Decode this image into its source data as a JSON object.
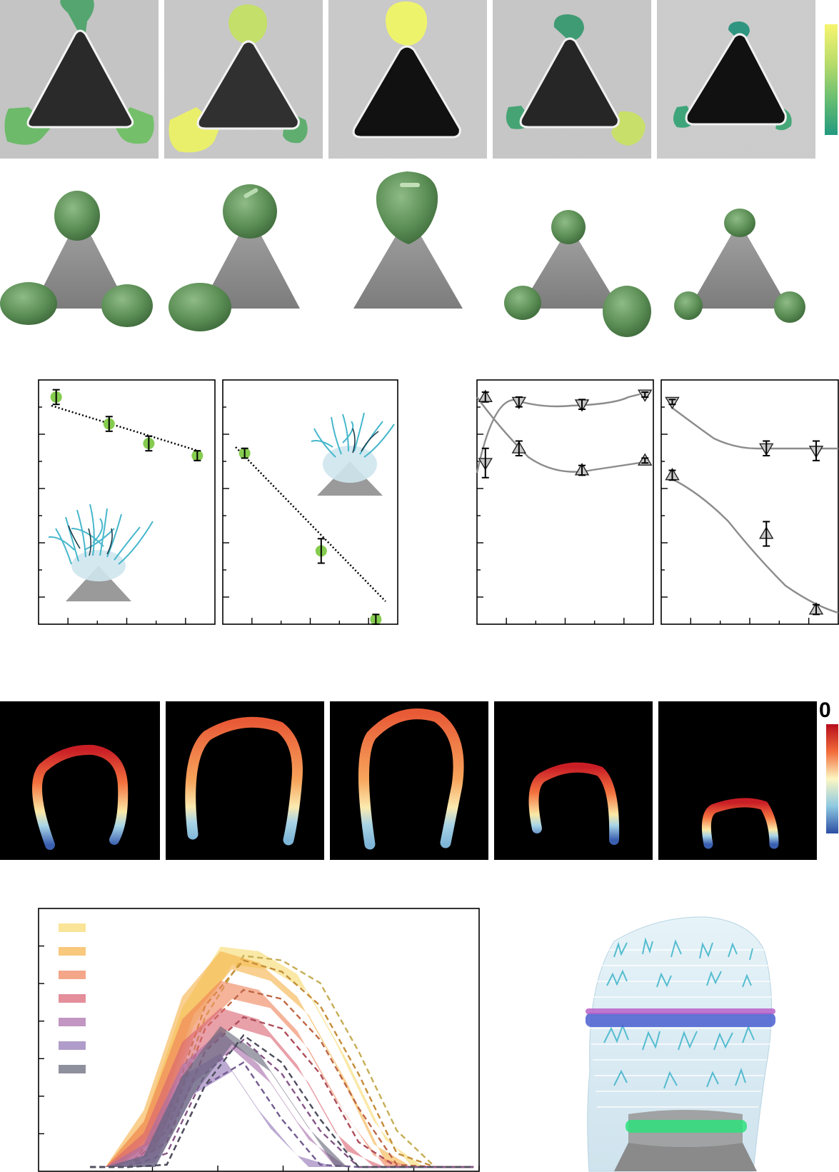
{
  "colors": {
    "viridis_top": "#f2f27a",
    "viridis_bottom": "#2a9c7e",
    "shell_green": "#5c8f56",
    "triangle_grey": "#8e8e8e",
    "ligand_cyan": "#46b7cc",
    "rdylbu_top": "#c0141c",
    "rdylbu_bottom": "#2a57a8",
    "fit_grey": "#8c8c8c"
  },
  "colorbar_top_label": "0",
  "chart_data": [
    {
      "type": "scatter",
      "panel": "middle-left-1",
      "x": [
        1,
        2.2,
        3.1,
        4.2
      ],
      "y": [
        0.93,
        0.82,
        0.74,
        0.69
      ],
      "yerr": [
        0.03,
        0.03,
        0.03,
        0.02
      ],
      "fit": "linear",
      "marker": "green-circle",
      "grid": false
    },
    {
      "type": "scatter",
      "panel": "middle-left-2",
      "x": [
        1,
        2.4,
        3.4
      ],
      "y": [
        0.7,
        0.3,
        0.02
      ],
      "yerr": [
        0.02,
        0.05,
        0.02
      ],
      "fit": "linear",
      "marker": "green-circle",
      "grid": false
    },
    {
      "type": "scatter",
      "panel": "middle-right-1",
      "series": [
        {
          "marker": "triangle-down",
          "x": [
            1,
            1.8,
            3.3,
            4.8
          ],
          "y": [
            0.66,
            0.91,
            0.9,
            0.94
          ],
          "yerr": [
            0.06,
            0.02,
            0.02,
            0.01
          ]
        },
        {
          "marker": "triangle-up",
          "x": [
            1,
            1.8,
            3.3,
            4.8
          ],
          "y": [
            0.93,
            0.72,
            0.63,
            0.67
          ],
          "yerr": [
            0.02,
            0.03,
            0.02,
            0.01
          ]
        }
      ],
      "fit": "smooth",
      "grid": false
    },
    {
      "type": "scatter",
      "panel": "middle-right-2",
      "series": [
        {
          "marker": "triangle-down",
          "x": [
            1,
            2.7,
            3.6
          ],
          "y": [
            0.91,
            0.72,
            0.71
          ],
          "yerr": [
            0.01,
            0.03,
            0.04
          ]
        },
        {
          "marker": "triangle-up",
          "x": [
            1,
            2.7,
            3.6
          ],
          "y": [
            0.61,
            0.37,
            0.06
          ],
          "yerr": [
            0.02,
            0.05,
            0.02
          ]
        }
      ],
      "fit": "smooth",
      "grid": false
    },
    {
      "type": "area",
      "panel": "bottom-left",
      "x": [
        0,
        0.1,
        0.2,
        0.3,
        0.4,
        0.5,
        0.6,
        0.7,
        0.8,
        0.9,
        1.0
      ],
      "series": [
        {
          "color": "#f7d96b",
          "values": [
            0,
            0,
            0.2,
            0.7,
            0.97,
            0.95,
            0.85,
            0.55,
            0.2,
            0,
            0
          ]
        },
        {
          "color": "#f5b046",
          "values": [
            0,
            0,
            0.25,
            0.75,
            0.95,
            0.9,
            0.75,
            0.45,
            0.1,
            0,
            0
          ]
        },
        {
          "color": "#ee8056",
          "values": [
            0,
            0,
            0.2,
            0.65,
            0.82,
            0.78,
            0.6,
            0.3,
            0.05,
            0,
            0
          ]
        },
        {
          "color": "#d86070",
          "values": [
            0,
            0,
            0.15,
            0.55,
            0.7,
            0.65,
            0.45,
            0.15,
            0,
            0,
            0
          ]
        },
        {
          "color": "#a66aa8",
          "values": [
            0,
            0,
            0.1,
            0.45,
            0.6,
            0.45,
            0.2,
            0,
            0,
            0,
            0
          ]
        },
        {
          "color": "#8f72b4",
          "values": [
            0,
            0,
            0.05,
            0.4,
            0.5,
            0.25,
            0.05,
            0,
            0,
            0,
            0
          ]
        },
        {
          "color": "#5f6173",
          "values": [
            0,
            0,
            0.05,
            0.4,
            0.62,
            0.5,
            0.25,
            0,
            0,
            0,
            0
          ]
        }
      ],
      "grid": false,
      "legend": "top-left"
    }
  ]
}
